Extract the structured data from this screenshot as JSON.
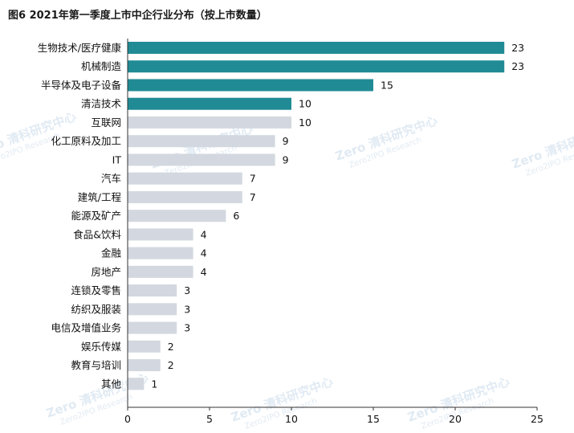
{
  "title": "图6 2021年第一季度上市中企行业分布（按上市数量）",
  "watermark": {
    "text": "Zero 清科研究中心",
    "subtext": "Zero2IPO Research"
  },
  "colors": {
    "highlight": "#208b94",
    "normal": "#d3d8e0",
    "axis": "#333333"
  },
  "chart_data": {
    "type": "bar",
    "orientation": "horizontal",
    "title": "图6 2021年第一季度上市中企行业分布（按上市数量）",
    "categories": [
      "生物技术/医疗健康",
      "机械制造",
      "半导体及电子设备",
      "清洁技术",
      "互联网",
      "化工原料及加工",
      "IT",
      "汽车",
      "建筑/工程",
      "能源及矿产",
      "食品&饮料",
      "金融",
      "房地产",
      "连锁及零售",
      "纺织及服装",
      "电信及增值业务",
      "娱乐传媒",
      "教育与培训",
      "其他"
    ],
    "values": [
      23,
      23,
      15,
      10,
      10,
      9,
      9,
      7,
      7,
      6,
      4,
      4,
      4,
      3,
      3,
      3,
      2,
      2,
      1
    ],
    "highlighted": [
      true,
      true,
      true,
      true,
      false,
      false,
      false,
      false,
      false,
      false,
      false,
      false,
      false,
      false,
      false,
      false,
      false,
      false,
      false
    ],
    "xlim": [
      0,
      25
    ],
    "xticks": [
      0,
      5,
      10,
      15,
      20,
      25
    ],
    "grid": false,
    "legend": "none"
  }
}
